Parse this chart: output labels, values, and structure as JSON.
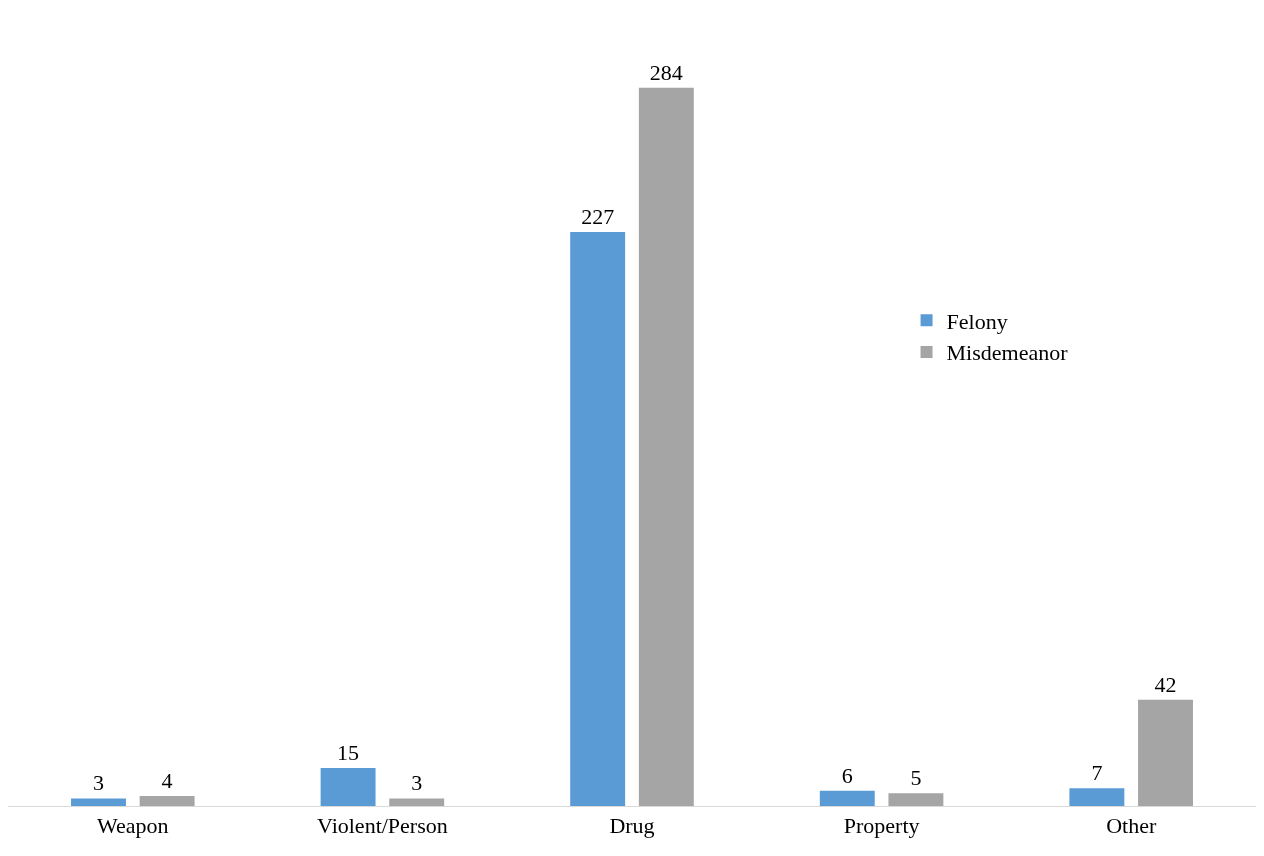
{
  "chart_data": {
    "type": "bar",
    "categories": [
      "Weapon",
      "Violent/Person",
      "Drug",
      "Property",
      "Other"
    ],
    "series": [
      {
        "name": "Felony",
        "color": "#5b9bd5",
        "values": [
          3,
          15,
          227,
          6,
          7
        ]
      },
      {
        "name": "Misdemeanor",
        "color": "#a5a5a5",
        "values": [
          4,
          3,
          284,
          5,
          42
        ]
      }
    ],
    "data_labels": true,
    "legend": "right"
  }
}
